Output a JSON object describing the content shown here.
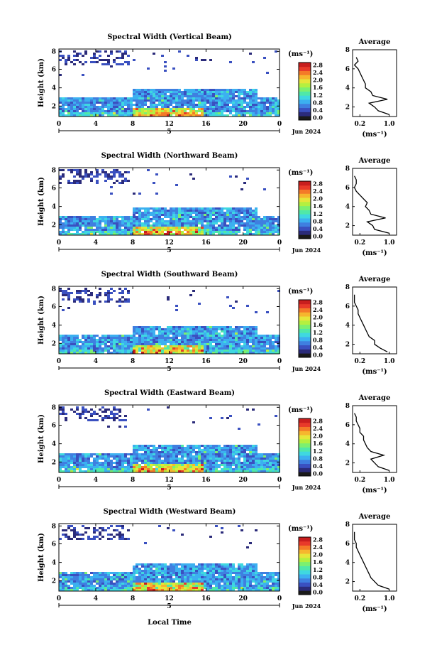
{
  "figure": {
    "colors": {
      "scale": [
        "#2b2b7a",
        "#3a50c0",
        "#3f7fe0",
        "#3cb0f0",
        "#3fd8e0",
        "#50e8a8",
        "#7cf070",
        "#b4f040",
        "#e6e63a",
        "#f6b62e",
        "#f47a28",
        "#e83a2a",
        "#c81e1e"
      ],
      "lowest_bin": "#1a1a1a",
      "axis": "#000000"
    },
    "xlabel": "Local Time",
    "shared": {
      "ylabel": "Height (km)",
      "y_ticks": [
        "2",
        "4",
        "6",
        "8"
      ],
      "x_ticks": [
        "0",
        "4",
        "8",
        "12",
        "16",
        "20",
        "0"
      ],
      "day": "5",
      "date_label": "Jun 2024",
      "unit_label": "(ms⁻¹)",
      "colorbar_ticks": [
        "0.0",
        "0.4",
        "0.8",
        "1.2",
        "1.6",
        "2.0",
        "2.4",
        "2.8"
      ],
      "avg_title": "Average",
      "avg_xticks": [
        "0.2",
        "1.0"
      ],
      "avg_xlabel": "(ms⁻¹)",
      "avg_yticks": [
        "2",
        "4",
        "6",
        "8"
      ]
    },
    "panels": [
      {
        "title": "Spectral Width (Vertical Beam)"
      },
      {
        "title": "Spectral Width (Northward Beam)"
      },
      {
        "title": "Spectral Width (Southward Beam)"
      },
      {
        "title": "Spectral Width (Eastward Beam)"
      },
      {
        "title": "Spectral Width (Westward Beam)"
      }
    ]
  },
  "chart_data": [
    {
      "type": "heatmap",
      "title": "Spectral Width (Vertical Beam)",
      "xlabel": "",
      "ylabel": "Height (km)",
      "xlim": [
        0,
        24
      ],
      "ylim": [
        1,
        8
      ],
      "colorbar_range": [
        0.0,
        2.8
      ],
      "average_profile": {
        "type": "line",
        "title": "Average",
        "xlabel": "(ms⁻¹)",
        "xlim": [
          0,
          1.2
        ],
        "ylim": [
          1,
          8
        ],
        "height_km": [
          1.2,
          1.6,
          2.0,
          2.4,
          2.8,
          3.2,
          3.6,
          4.0,
          4.4,
          4.8,
          5.2,
          5.6,
          6.0,
          6.4,
          6.8,
          7.2
        ],
        "width_ms": [
          1.0,
          0.7,
          0.6,
          0.45,
          0.95,
          0.55,
          0.5,
          0.35,
          0.35,
          0.3,
          0.25,
          0.2,
          0.15,
          0.05,
          0.15,
          0.1
        ]
      }
    },
    {
      "type": "heatmap",
      "title": "Spectral Width (Northward Beam)",
      "xlabel": "",
      "ylabel": "Height (km)",
      "xlim": [
        0,
        24
      ],
      "ylim": [
        1,
        8
      ],
      "colorbar_range": [
        0.0,
        2.8
      ],
      "average_profile": {
        "type": "line",
        "title": "Average",
        "xlabel": "(ms⁻¹)",
        "xlim": [
          0,
          1.2
        ],
        "ylim": [
          1,
          8
        ],
        "height_km": [
          1.2,
          1.6,
          2.0,
          2.4,
          2.8,
          3.2,
          3.6,
          4.0,
          4.4,
          4.8,
          5.2,
          5.6,
          6.0,
          6.4,
          6.8,
          7.2
        ],
        "width_ms": [
          1.0,
          0.6,
          0.55,
          0.4,
          0.9,
          0.5,
          0.45,
          0.35,
          0.4,
          0.3,
          0.2,
          0.1,
          0.05,
          0.1,
          0.1,
          0.05
        ]
      }
    },
    {
      "type": "heatmap",
      "title": "Spectral Width (Southward Beam)",
      "xlabel": "",
      "ylabel": "Height (km)",
      "xlim": [
        0,
        24
      ],
      "ylim": [
        1,
        8
      ],
      "colorbar_range": [
        0.0,
        2.8
      ],
      "average_profile": {
        "type": "line",
        "title": "Average",
        "xlabel": "(ms⁻¹)",
        "xlim": [
          0,
          1.2
        ],
        "ylim": [
          1,
          8
        ],
        "height_km": [
          1.2,
          1.6,
          2.0,
          2.4,
          2.8,
          3.2,
          3.6,
          4.0,
          4.4,
          4.8,
          5.2,
          5.6,
          6.0,
          6.4,
          6.8,
          7.2
        ],
        "width_ms": [
          0.95,
          0.75,
          0.6,
          0.6,
          0.45,
          0.4,
          0.35,
          0.3,
          0.25,
          0.2,
          0.15,
          0.15,
          0.1,
          0.05,
          0.05,
          0.05
        ]
      }
    },
    {
      "type": "heatmap",
      "title": "Spectral Width (Eastward Beam)",
      "xlabel": "",
      "ylabel": "Height (km)",
      "xlim": [
        0,
        24
      ],
      "ylim": [
        1,
        8
      ],
      "colorbar_range": [
        0.0,
        2.8
      ],
      "average_profile": {
        "type": "line",
        "title": "Average",
        "xlabel": "(ms⁻¹)",
        "xlim": [
          0,
          1.2
        ],
        "ylim": [
          1,
          8
        ],
        "height_km": [
          1.2,
          1.6,
          2.0,
          2.4,
          2.8,
          3.2,
          3.6,
          4.0,
          4.4,
          4.8,
          5.2,
          5.6,
          6.0,
          6.4,
          6.8,
          7.2
        ],
        "width_ms": [
          1.0,
          0.7,
          0.6,
          0.5,
          0.85,
          0.5,
          0.4,
          0.35,
          0.3,
          0.3,
          0.2,
          0.2,
          0.15,
          0.1,
          0.1,
          0.05
        ]
      }
    },
    {
      "type": "heatmap",
      "title": "Spectral Width (Westward Beam)",
      "xlabel": "Local Time",
      "ylabel": "Height (km)",
      "xlim": [
        0,
        24
      ],
      "ylim": [
        1,
        8
      ],
      "colorbar_range": [
        0.0,
        2.8
      ],
      "average_profile": {
        "type": "line",
        "title": "Average",
        "xlabel": "(ms⁻¹)",
        "xlim": [
          0,
          1.2
        ],
        "ylim": [
          1,
          8
        ],
        "height_km": [
          1.2,
          1.6,
          2.0,
          2.4,
          2.8,
          3.2,
          3.6,
          4.0,
          4.4,
          4.8,
          5.2,
          5.6,
          6.0,
          6.4,
          6.8,
          7.2
        ],
        "width_ms": [
          1.0,
          0.7,
          0.6,
          0.5,
          0.45,
          0.4,
          0.35,
          0.3,
          0.25,
          0.2,
          0.15,
          0.1,
          0.1,
          0.05,
          0.05,
          0.05
        ]
      }
    }
  ]
}
